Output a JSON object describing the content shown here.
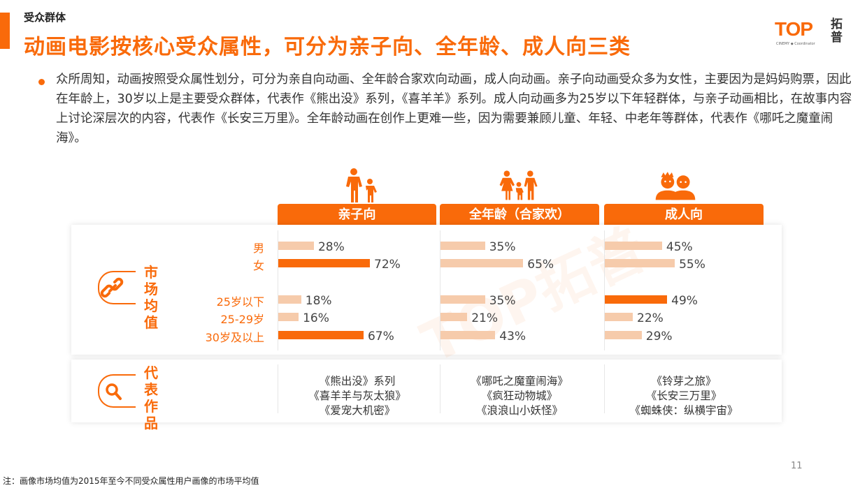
{
  "header": {
    "section": "受众群体",
    "title": "动画电影按核心受众属性，可分为亲子向、全年龄、成人向三类",
    "logo_text": "TOP",
    "logo_cn": "拓普",
    "logo_sub": "CINEMY ◆ Coordinator"
  },
  "paragraph": "众所周知，动画按照受众属性划分，可分为亲自向动画、全年龄合家欢向动画，成人向动画。亲子向动画受众多为女性，主要因为是妈妈购票，因此在年龄上，30岁以上是主要受众群体，代表作《熊出没》系列，《喜羊羊》系列。成人向动画多为25岁以下年轻群体，与亲子动画相比，在故事内容上讨论深层次的内容，代表作《长安三万里》。全年龄动画在创作上更难一些，因为需要兼顾儿童、年轻、中老年等群体，代表作《哪吒之魔童闹海》。",
  "side": {
    "market_label": "市场均值",
    "works_label": "代表作品",
    "market_icon": "link-icon",
    "works_icon": "search-icon"
  },
  "colors": {
    "accent": "#f96a0a",
    "light_bar": "#f6cbab"
  },
  "chart_data": {
    "type": "bar",
    "orientation": "horizontal",
    "categories": [
      "男",
      "女",
      "25岁以下",
      "25-29岁",
      "30岁及以上"
    ],
    "unit": "%",
    "series": [
      {
        "name": "亲子向",
        "icon": "parent-child-icon",
        "values": [
          28,
          72,
          18,
          16,
          67
        ],
        "highlight": [
          false,
          true,
          false,
          false,
          true
        ]
      },
      {
        "name": "全年龄（合家欢）",
        "icon": "family-icon",
        "values": [
          35,
          65,
          35,
          21,
          43
        ],
        "highlight": [
          false,
          false,
          false,
          false,
          false
        ]
      },
      {
        "name": "成人向",
        "icon": "adults-icon",
        "values": [
          45,
          55,
          49,
          22,
          29
        ],
        "highlight": [
          false,
          false,
          true,
          false,
          false
        ]
      }
    ]
  },
  "works": [
    [
      "《熊出没》系列",
      "《喜羊羊与灰太狼》",
      "《爱宠大机密》"
    ],
    [
      "《哪吒之魔童闹海》",
      "《疯狂动物城》",
      "《浪浪山小妖怪》"
    ],
    [
      "《铃芽之旅》",
      "《长安三万里》",
      "《蜘蛛侠：纵横宇宙》"
    ]
  ],
  "footer": {
    "page": "11",
    "note": "注：画像市场均值为2015年至今不同受众属性用户画像的市场平均值"
  }
}
